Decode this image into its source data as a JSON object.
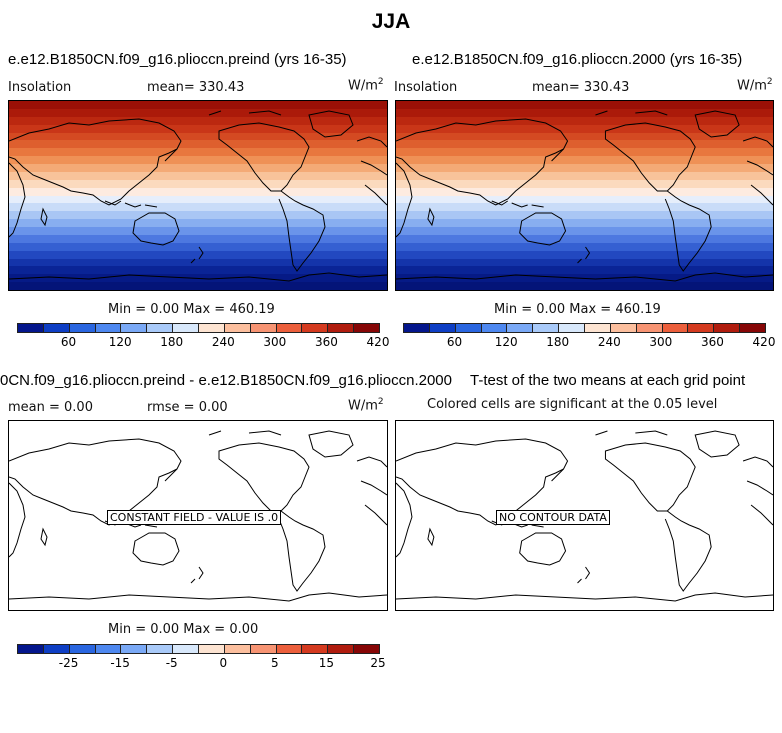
{
  "main_title": "JJA",
  "colorbar_colors": [
    "#04168c",
    "#0e3ec4",
    "#2a66e0",
    "#4e88f0",
    "#7aa9f6",
    "#a9caf9",
    "#d8e8fb",
    "#fde4d2",
    "#fcbf9e",
    "#f79473",
    "#ec5f3c",
    "#d43a1f",
    "#b01c0e",
    "#860606"
  ],
  "panels": {
    "top_left": {
      "title": "e.e12.B1850CN.f09_g16.plioccn.preind (yrs 16-35)",
      "variable": "Insolation",
      "mean_text": "mean= 330.43",
      "units": "W/m",
      "units_exp": "2",
      "minmax": "Min =    0.00 Max = 460.19",
      "ticks": [
        "60",
        "120",
        "180",
        "240",
        "300",
        "360",
        "420"
      ]
    },
    "top_right": {
      "title": "e.e12.B1850CN.f09_g16.plioccn.2000 (yrs 16-35)",
      "variable": "Insolation",
      "mean_text": "mean= 330.43",
      "units": "W/m",
      "units_exp": "2",
      "minmax": "Min =    0.00 Max = 460.19",
      "ticks": [
        "60",
        "120",
        "180",
        "240",
        "300",
        "360",
        "420"
      ]
    },
    "bottom_left": {
      "title": "0CN.f09_g16.plioccn.preind - e.e12.B1850CN.f09_g16.plioccn.2000",
      "mean_text": "mean =    0.00",
      "rmse_text": "rmse =    0.00",
      "units": "W/m",
      "units_exp": "2",
      "message": "CONSTANT FIELD - VALUE IS .0",
      "minmax": "Min =    0.00 Max =    0.00",
      "ticks": [
        "-25",
        "-15",
        "-5",
        "0",
        "5",
        "15",
        "25"
      ]
    },
    "bottom_right": {
      "title": "T-test of the two means at each grid point",
      "subtitle": "Colored cells are significant at the 0.05 level",
      "message": "NO CONTOUR DATA"
    }
  },
  "insolation_band_colors": [
    "#9b1006",
    "#ab1a0a",
    "#bb2810",
    "#c93618",
    "#d44a22",
    "#de5f2e",
    "#e8773e",
    "#ef9156",
    "#f4aa76",
    "#f8c39a",
    "#fbdabe",
    "#fdebe0",
    "#e6eefb",
    "#c9dcf8",
    "#a9c6f4",
    "#88aef0",
    "#6a94ea",
    "#4d78e0",
    "#3560d2",
    "#2248c0",
    "#1434aa",
    "#0a2496",
    "#061a86",
    "#041478"
  ]
}
